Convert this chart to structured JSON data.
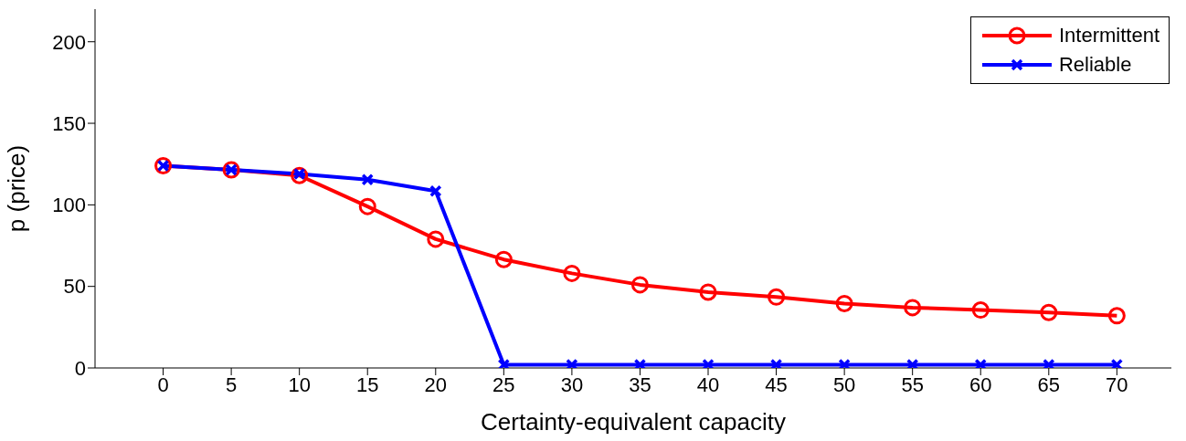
{
  "chart_data": {
    "type": "line",
    "xlabel": "Certainty-equivalent capacity",
    "ylabel": "p (price)",
    "x": [
      0,
      5,
      10,
      15,
      20,
      25,
      30,
      35,
      40,
      45,
      50,
      55,
      60,
      65,
      70
    ],
    "series": [
      {
        "name": "Intermittent",
        "color": "#ff0000",
        "marker": "circle",
        "values": [
          124,
          121.5,
          118,
          99,
          79,
          66.5,
          58,
          51,
          46.5,
          43.5,
          39.5,
          37,
          35.5,
          34,
          32
        ]
      },
      {
        "name": "Reliable",
        "color": "#0000ff",
        "marker": "cross",
        "values": [
          124,
          121.5,
          119,
          115.5,
          108.5,
          2,
          2,
          2,
          2,
          2,
          2,
          2,
          2,
          2,
          2
        ]
      }
    ],
    "xlim": [
      -5,
      74
    ],
    "xticks": [
      0,
      5,
      10,
      15,
      20,
      25,
      30,
      35,
      40,
      45,
      50,
      55,
      60,
      65,
      70
    ],
    "ylim": [
      0,
      220
    ],
    "yticks": [
      0,
      50,
      100,
      150,
      200
    ],
    "grid": false,
    "legend": "top right",
    "line_style": "solid"
  }
}
